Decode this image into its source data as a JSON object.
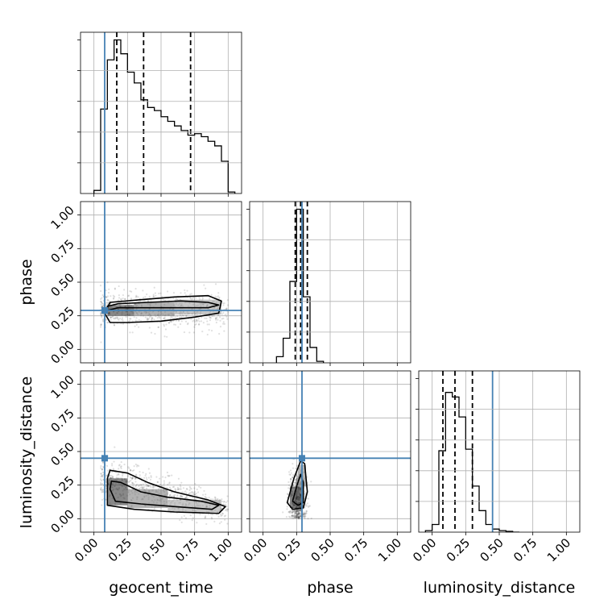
{
  "chart_data": {
    "type": "corner",
    "parameters": [
      "geocent_time",
      "phase",
      "luminosity_distance"
    ],
    "axis_labels": {
      "geocent_time": "geocent_time",
      "phase": "phase",
      "luminosity_distance": "luminosity_distance"
    },
    "range": [
      -0.1,
      1.1
    ],
    "ticks": [
      0.0,
      0.25,
      0.5,
      0.75,
      1.0
    ],
    "tick_labels": [
      "0.00",
      "0.25",
      "0.50",
      "0.75",
      "1.00"
    ],
    "grid": true,
    "truths": {
      "geocent_time": 0.08,
      "phase": 0.29,
      "luminosity_distance": 0.45
    },
    "truth_color": "#4682b4",
    "quantiles": {
      "geocent_time": [
        0.17,
        0.37,
        0.72
      ],
      "phase": [
        0.24,
        0.28,
        0.33
      ],
      "luminosity_distance": [
        0.08,
        0.17,
        0.3
      ]
    },
    "histograms": {
      "geocent_time": {
        "bins": [
          0.0,
          0.05,
          0.1,
          0.15,
          0.2,
          0.25,
          0.3,
          0.35,
          0.4,
          0.45,
          0.5,
          0.55,
          0.6,
          0.65,
          0.7,
          0.75,
          0.8,
          0.85,
          0.9,
          0.95,
          1.0,
          1.05
        ],
        "heights": [
          0.02,
          0.55,
          0.87,
          1.0,
          0.91,
          0.79,
          0.72,
          0.61,
          0.56,
          0.54,
          0.5,
          0.47,
          0.44,
          0.41,
          0.38,
          0.39,
          0.37,
          0.34,
          0.31,
          0.21,
          0.01
        ]
      },
      "phase": {
        "bins": [
          0.1,
          0.15,
          0.2,
          0.25,
          0.3,
          0.35,
          0.4,
          0.45
        ],
        "heights": [
          0.04,
          0.16,
          0.53,
          1.0,
          0.43,
          0.1,
          0.01
        ]
      },
      "luminosity_distance": {
        "bins": [
          -0.05,
          0.0,
          0.05,
          0.1,
          0.15,
          0.2,
          0.25,
          0.3,
          0.35,
          0.4,
          0.45,
          0.5,
          0.55,
          0.6,
          0.65
        ],
        "heights": [
          0.01,
          0.05,
          0.53,
          0.91,
          0.88,
          0.75,
          0.54,
          0.3,
          0.14,
          0.05,
          0.02,
          0.01,
          0.005,
          0.0
        ]
      }
    },
    "contour_panels": [
      {
        "x": "geocent_time",
        "y": "phase",
        "peak": [
          0.18,
          0.29
        ],
        "contours": [
          [
            [
              0.1,
              0.29
            ],
            [
              0.18,
              0.31
            ],
            [
              0.4,
              0.31
            ],
            [
              0.65,
              0.31
            ],
            [
              0.85,
              0.31
            ],
            [
              0.93,
              0.33
            ],
            [
              0.85,
              0.35
            ],
            [
              0.65,
              0.36
            ],
            [
              0.4,
              0.35
            ],
            [
              0.18,
              0.34
            ],
            [
              0.1,
              0.32
            ]
          ],
          [
            [
              0.08,
              0.27
            ],
            [
              0.12,
              0.2
            ],
            [
              0.25,
              0.2
            ],
            [
              0.5,
              0.21
            ],
            [
              0.75,
              0.24
            ],
            [
              0.93,
              0.27
            ],
            [
              0.95,
              0.36
            ],
            [
              0.85,
              0.4
            ],
            [
              0.6,
              0.39
            ],
            [
              0.35,
              0.37
            ],
            [
              0.12,
              0.35
            ]
          ]
        ],
        "shading": [
          {
            "x": [
              0.1,
              0.3
            ],
            "y": [
              0.25,
              0.33
            ],
            "level": 0.85
          },
          {
            "x": [
              0.3,
              0.6
            ],
            "y": [
              0.25,
              0.35
            ],
            "level": 0.55
          },
          {
            "x": [
              0.6,
              0.95
            ],
            "y": [
              0.26,
              0.37
            ],
            "level": 0.4
          }
        ],
        "scatter_extent": {
          "x": [
            0.05,
            1.0
          ],
          "y": [
            0.18,
            0.52
          ]
        }
      },
      {
        "x": "geocent_time",
        "y": "luminosity_distance",
        "peak": [
          0.17,
          0.18
        ],
        "contours": [
          [
            [
              0.12,
              0.22
            ],
            [
              0.16,
              0.13
            ],
            [
              0.35,
              0.11
            ],
            [
              0.6,
              0.09
            ],
            [
              0.88,
              0.07
            ],
            [
              0.93,
              0.1
            ],
            [
              0.8,
              0.13
            ],
            [
              0.55,
              0.16
            ],
            [
              0.35,
              0.2
            ],
            [
              0.2,
              0.27
            ],
            [
              0.13,
              0.28
            ]
          ],
          [
            [
              0.1,
              0.3
            ],
            [
              0.1,
              0.1
            ],
            [
              0.3,
              0.07
            ],
            [
              0.6,
              0.05
            ],
            [
              0.93,
              0.04
            ],
            [
              0.98,
              0.09
            ],
            [
              0.85,
              0.14
            ],
            [
              0.6,
              0.2
            ],
            [
              0.4,
              0.27
            ],
            [
              0.25,
              0.34
            ],
            [
              0.12,
              0.36
            ]
          ]
        ],
        "shading": [
          {
            "x": [
              0.1,
              0.25
            ],
            "y": [
              0.1,
              0.3
            ],
            "level": 0.85
          },
          {
            "x": [
              0.25,
              0.55
            ],
            "y": [
              0.08,
              0.22
            ],
            "level": 0.55
          },
          {
            "x": [
              0.55,
              0.95
            ],
            "y": [
              0.05,
              0.14
            ],
            "level": 0.4
          }
        ],
        "scatter_extent": {
          "x": [
            0.05,
            1.0
          ],
          "y": [
            0.02,
            0.8
          ]
        }
      },
      {
        "x": "phase",
        "y": "luminosity_distance",
        "peak": [
          0.26,
          0.14
        ],
        "contours": [
          [
            [
              0.22,
              0.13
            ],
            [
              0.26,
              0.1
            ],
            [
              0.3,
              0.12
            ],
            [
              0.3,
              0.27
            ],
            [
              0.28,
              0.33
            ],
            [
              0.25,
              0.24
            ]
          ],
          [
            [
              0.18,
              0.12
            ],
            [
              0.22,
              0.07
            ],
            [
              0.3,
              0.08
            ],
            [
              0.33,
              0.2
            ],
            [
              0.31,
              0.41
            ],
            [
              0.28,
              0.43
            ],
            [
              0.23,
              0.3
            ]
          ]
        ],
        "shading": [
          {
            "x": [
              0.2,
              0.3
            ],
            "y": [
              0.08,
              0.24
            ],
            "level": 0.85
          },
          {
            "x": [
              0.26,
              0.32
            ],
            "y": [
              0.24,
              0.4
            ],
            "level": 0.5
          }
        ],
        "scatter_extent": {
          "x": [
            0.15,
            0.37
          ],
          "y": [
            0.04,
            0.6
          ]
        }
      }
    ]
  }
}
